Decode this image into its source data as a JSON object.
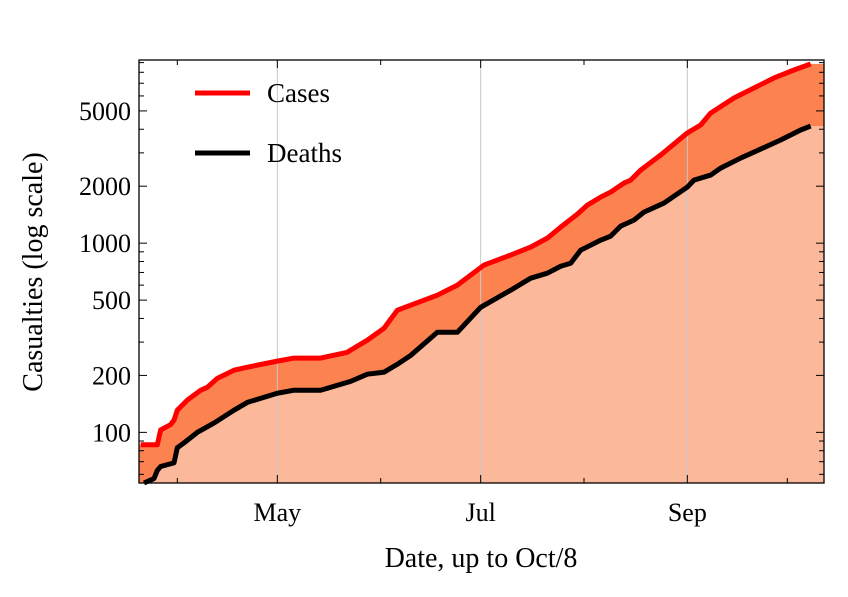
{
  "chart_data": {
    "type": "area",
    "title": "",
    "xlabel": "Date, up to Oct/8",
    "ylabel": "Casualties (log scale)",
    "x_unit": "days since Mar 1",
    "xlim": [
      19.5,
      225
    ],
    "ylim": [
      54,
      9290
    ],
    "yscale": "log",
    "grid": "vertical lines at major x ticks",
    "legend_placement": "top-left",
    "x_ticks": [
      {
        "value": 61,
        "label": "May"
      },
      {
        "value": 122,
        "label": "Jul"
      },
      {
        "value": 184,
        "label": "Sep"
      }
    ],
    "x_minor_ticks": [
      31,
      92,
      153,
      214
    ],
    "y_ticks": [
      {
        "value": 100,
        "label": "100"
      },
      {
        "value": 200,
        "label": "200"
      },
      {
        "value": 500,
        "label": "500"
      },
      {
        "value": 1000,
        "label": "1000"
      },
      {
        "value": 2000,
        "label": "2000"
      },
      {
        "value": 5000,
        "label": "5000"
      }
    ],
    "y_minor_ticks": [
      60,
      70,
      80,
      90,
      300,
      400,
      600,
      700,
      800,
      900,
      3000,
      4000,
      6000,
      7000,
      8000,
      9000
    ],
    "series": [
      {
        "name": "Cases",
        "color": "#ff0000",
        "fill": "#fc8250",
        "x": [
          20,
          25,
          26,
          29,
          30,
          31,
          34,
          38,
          40,
          43,
          48,
          52,
          61,
          66,
          74,
          82,
          83,
          88,
          93,
          97,
          101,
          109,
          115,
          119,
          123,
          131,
          137,
          142,
          146,
          151,
          154,
          158,
          161,
          165,
          167,
          170,
          176,
          184,
          188,
          191,
          198,
          204,
          210,
          216,
          221
        ],
        "y": [
          86,
          86,
          103,
          110,
          116,
          131,
          148,
          167,
          173,
          193,
          213,
          221,
          238,
          247,
          247,
          265,
          272,
          307,
          355,
          442,
          470,
          531,
          600,
          678,
          766,
          865,
          953,
          1063,
          1215,
          1423,
          1588,
          1751,
          1862,
          2077,
          2153,
          2433,
          2923,
          3822,
          4210,
          4871,
          5852,
          6607,
          7464,
          8226,
          8856
        ]
      },
      {
        "name": "Deaths",
        "color": "#000000",
        "fill": "#fbb89b",
        "x": [
          21,
          24,
          25,
          26,
          30,
          31,
          33,
          37,
          42,
          48,
          52,
          61,
          66,
          74,
          83,
          88,
          93,
          97,
          101,
          109,
          115,
          122,
          131,
          137,
          142,
          146,
          149,
          152,
          158,
          161,
          164,
          168,
          171,
          177,
          184,
          186,
          191,
          194,
          200,
          206,
          212,
          218,
          221
        ],
        "y": [
          54,
          57,
          63,
          66,
          69,
          83,
          88,
          100,
          112,
          131,
          144,
          161,
          167,
          167,
          186,
          203,
          208,
          229,
          255,
          338,
          338,
          458,
          564,
          653,
          694,
          755,
          783,
          918,
          1037,
          1089,
          1230,
          1324,
          1459,
          1629,
          1978,
          2153,
          2290,
          2493,
          2817,
          3143,
          3508,
          3963,
          4160
        ]
      }
    ]
  }
}
